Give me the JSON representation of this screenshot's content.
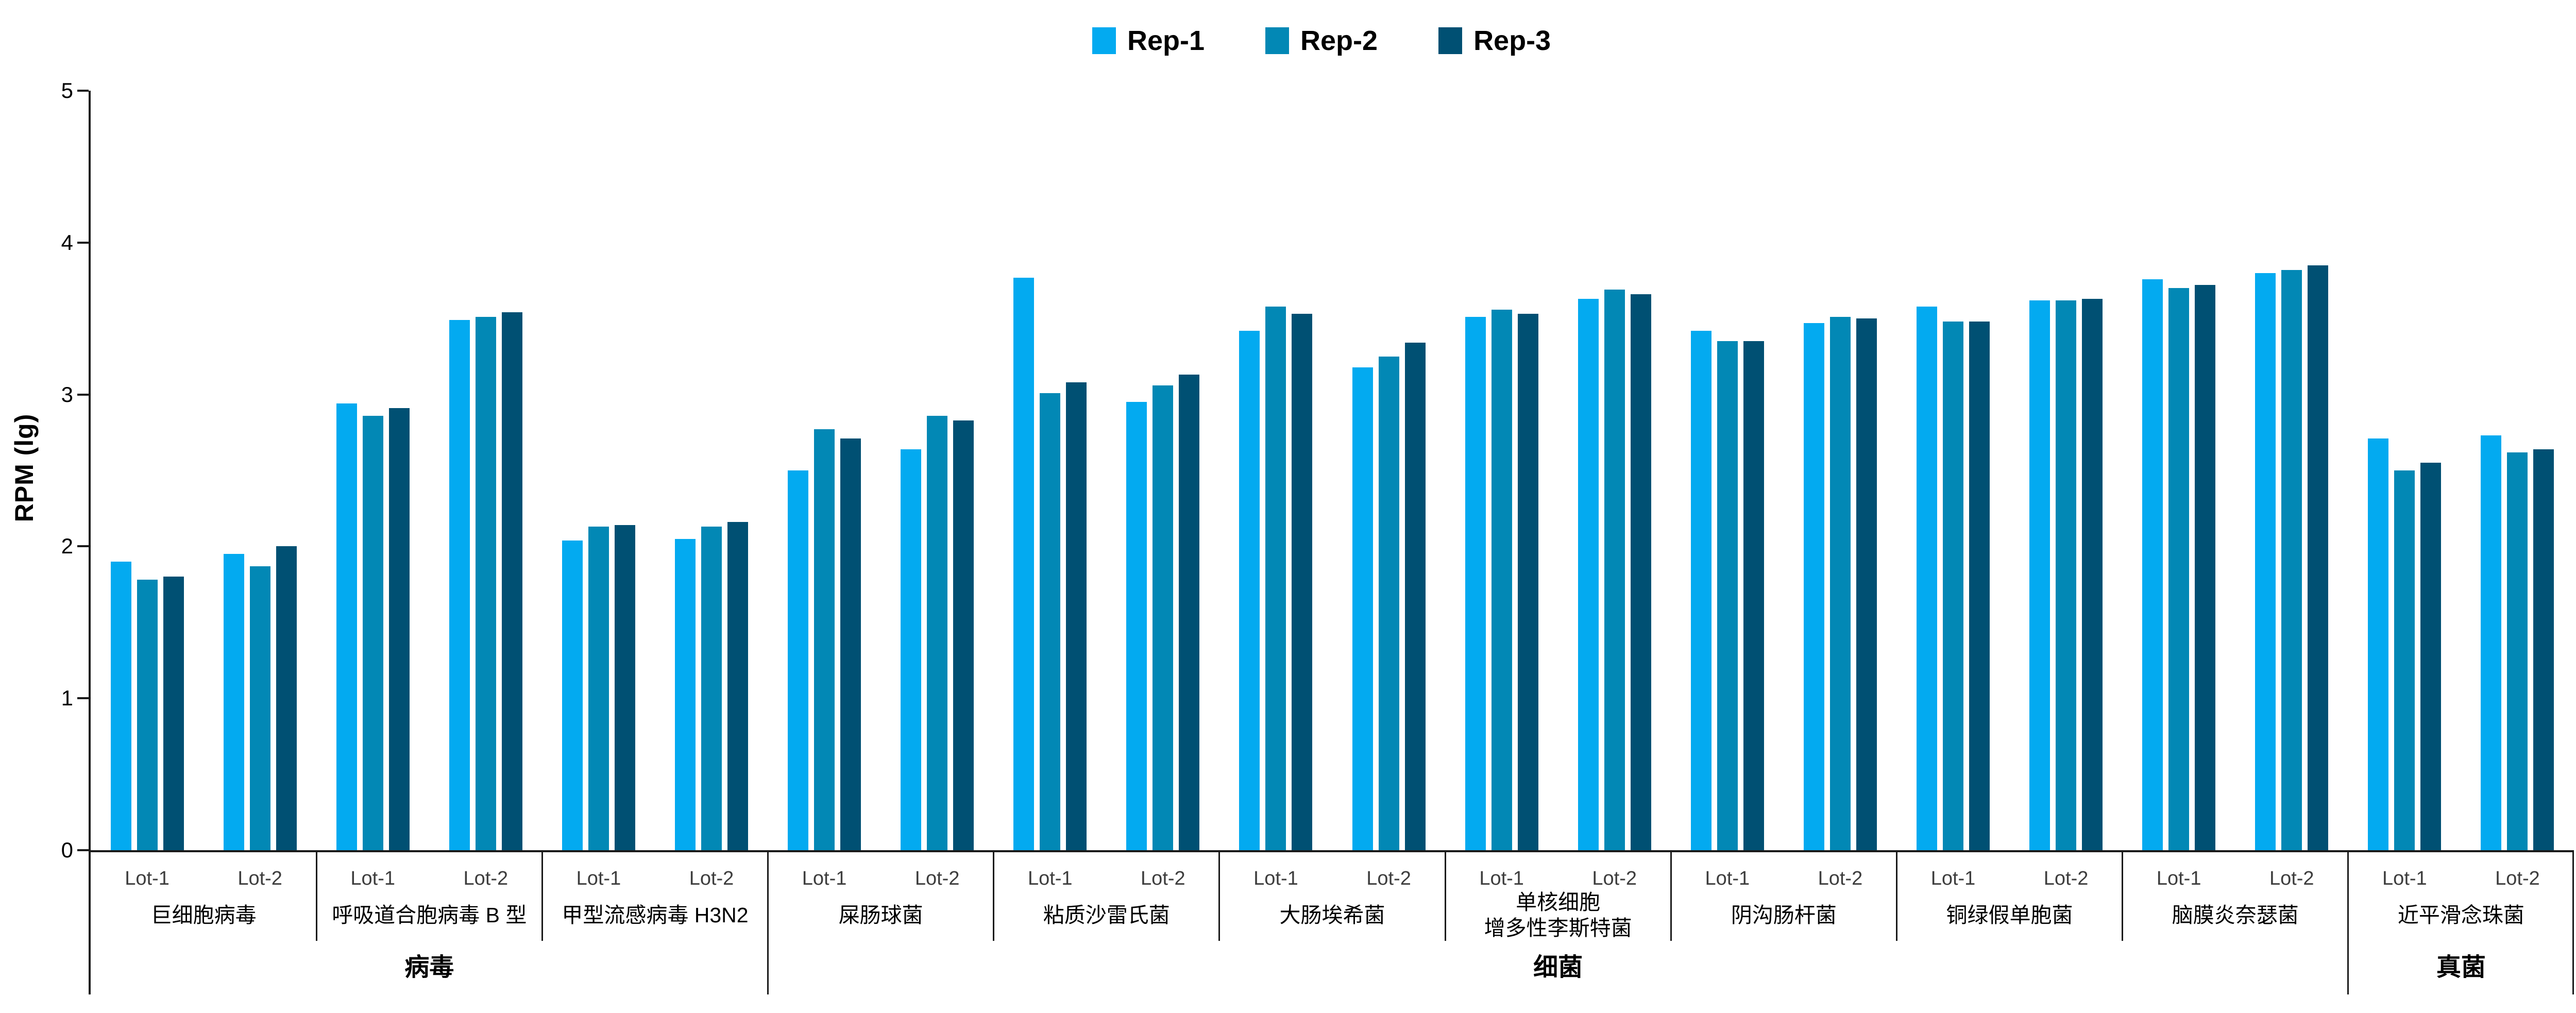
{
  "chart_data": {
    "type": "bar",
    "title": "",
    "ylabel": "RPM (lg)",
    "xlabel": "",
    "ylim": [
      0,
      5
    ],
    "yticks": [
      0,
      1,
      2,
      3,
      4,
      5
    ],
    "grid": false,
    "legend_position": "top-center",
    "axis_color": "#1a1a1a",
    "series": [
      {
        "name": "Rep-1",
        "color": "#03AAF0"
      },
      {
        "name": "Rep-2",
        "color": "#0288B5"
      },
      {
        "name": "Rep-3",
        "color": "#005073"
      }
    ],
    "lot_labels": [
      "Lot-1",
      "Lot-2"
    ],
    "sections": [
      {
        "label": "病毒",
        "organisms": [
          {
            "name": "巨细胞病毒",
            "lots": [
              {
                "label": "Lot-1",
                "values": [
                  1.9,
                  1.78,
                  1.8
                ]
              },
              {
                "label": "Lot-2",
                "values": [
                  1.95,
                  1.87,
                  2.0
                ]
              }
            ]
          },
          {
            "name": "呼吸道合胞病毒 B 型",
            "lots": [
              {
                "label": "Lot-1",
                "values": [
                  2.94,
                  2.86,
                  2.91
                ]
              },
              {
                "label": "Lot-2",
                "values": [
                  3.49,
                  3.51,
                  3.54
                ]
              }
            ]
          },
          {
            "name": "甲型流感病毒 H3N2",
            "lots": [
              {
                "label": "Lot-1",
                "values": [
                  2.04,
                  2.13,
                  2.14
                ]
              },
              {
                "label": "Lot-2",
                "values": [
                  2.05,
                  2.13,
                  2.16
                ]
              }
            ]
          }
        ]
      },
      {
        "label": "细菌",
        "organisms": [
          {
            "name": "屎肠球菌",
            "lots": [
              {
                "label": "Lot-1",
                "values": [
                  2.5,
                  2.77,
                  2.71
                ]
              },
              {
                "label": "Lot-2",
                "values": [
                  2.64,
                  2.86,
                  2.83
                ]
              }
            ]
          },
          {
            "name": "粘质沙雷氏菌",
            "lots": [
              {
                "label": "Lot-1",
                "values": [
                  3.77,
                  3.01,
                  3.08
                ]
              },
              {
                "label": "Lot-2",
                "values": [
                  2.95,
                  3.06,
                  3.13
                ]
              }
            ]
          },
          {
            "name": "大肠埃希菌",
            "lots": [
              {
                "label": "Lot-1",
                "values": [
                  3.42,
                  3.58,
                  3.53
                ]
              },
              {
                "label": "Lot-2",
                "values": [
                  3.18,
                  3.25,
                  3.34
                ]
              }
            ]
          },
          {
            "name": "单核细胞\n增多性李斯特菌",
            "lots": [
              {
                "label": "Lot-1",
                "values": [
                  3.51,
                  3.56,
                  3.53
                ]
              },
              {
                "label": "Lot-2",
                "values": [
                  3.63,
                  3.69,
                  3.66
                ]
              }
            ]
          },
          {
            "name": "阴沟肠杆菌",
            "lots": [
              {
                "label": "Lot-1",
                "values": [
                  3.42,
                  3.35,
                  3.35
                ]
              },
              {
                "label": "Lot-2",
                "values": [
                  3.47,
                  3.51,
                  3.5
                ]
              }
            ]
          },
          {
            "name": "铜绿假单胞菌",
            "lots": [
              {
                "label": "Lot-1",
                "values": [
                  3.58,
                  3.48,
                  3.48
                ]
              },
              {
                "label": "Lot-2",
                "values": [
                  3.62,
                  3.62,
                  3.63
                ]
              }
            ]
          },
          {
            "name": "脑膜炎奈瑟菌",
            "lots": [
              {
                "label": "Lot-1",
                "values": [
                  3.76,
                  3.7,
                  3.72
                ]
              },
              {
                "label": "Lot-2",
                "values": [
                  3.8,
                  3.82,
                  3.85
                ]
              }
            ]
          }
        ]
      },
      {
        "label": "真菌",
        "organisms": [
          {
            "name": "近平滑念珠菌",
            "lots": [
              {
                "label": "Lot-1",
                "values": [
                  2.71,
                  2.5,
                  2.55
                ]
              },
              {
                "label": "Lot-2",
                "values": [
                  2.73,
                  2.62,
                  2.64
                ]
              }
            ]
          }
        ]
      }
    ]
  }
}
